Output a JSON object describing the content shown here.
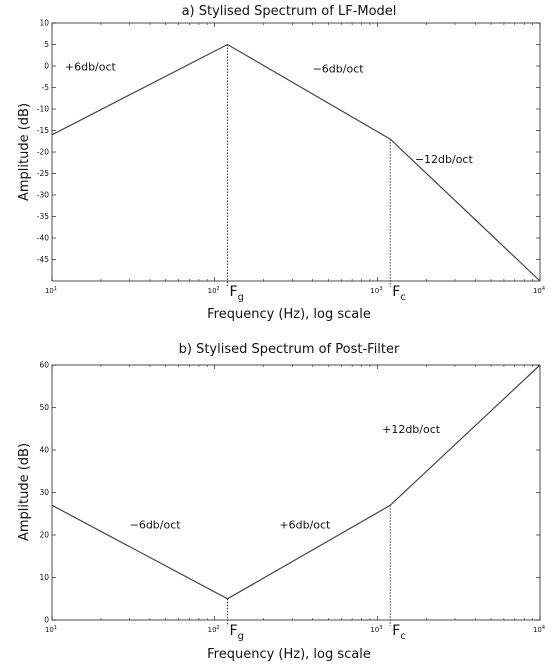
{
  "chart_data": [
    {
      "type": "line",
      "title": "a) Stylised Spectrum of LF-Model",
      "xlabel": "Frequency (Hz), log scale",
      "ylabel": "Amplitude (dB)",
      "xscale": "log",
      "xlim": [
        10,
        10000
      ],
      "ylim": [
        -50,
        10
      ],
      "yticks": [
        10,
        5,
        0,
        -5,
        -10,
        -15,
        -20,
        -25,
        -30,
        -35,
        -40,
        -45
      ],
      "xticks": [
        {
          "x": 10,
          "base": "10",
          "exp": "1"
        },
        {
          "x": 100,
          "base": "10",
          "exp": "2"
        },
        {
          "x": 1000,
          "base": "10",
          "exp": "3"
        },
        {
          "x": 10000,
          "base": "10",
          "exp": "4"
        }
      ],
      "series": [
        {
          "x": [
            10,
            120,
            1200,
            10000
          ],
          "y": [
            -16,
            5,
            -17,
            -50
          ]
        }
      ],
      "markers": [
        {
          "x": 120,
          "y": 5,
          "label": "F",
          "sub": "g"
        },
        {
          "x": 1200,
          "y": -17,
          "label": "F",
          "sub": "c"
        }
      ],
      "annotations": [
        {
          "x": 12,
          "y": -1,
          "text": "+6db/oct"
        },
        {
          "x": 400,
          "y": -1.5,
          "text": "−6db/oct"
        },
        {
          "x": 1700,
          "y": -22.5,
          "text": "−12db/oct"
        }
      ],
      "grid": false,
      "legend": "none"
    },
    {
      "type": "line",
      "title": "b) Stylised Spectrum of Post-Filter",
      "xlabel": "Frequency (Hz), log scale",
      "ylabel": "Amplitude (dB)",
      "xscale": "log",
      "xlim": [
        10,
        10000
      ],
      "ylim": [
        0,
        60
      ],
      "yticks": [
        0,
        10,
        20,
        30,
        40,
        50,
        60
      ],
      "xticks": [
        {
          "x": 10,
          "base": "10",
          "exp": "1"
        },
        {
          "x": 100,
          "base": "10",
          "exp": "2"
        },
        {
          "x": 1000,
          "base": "10",
          "exp": "3"
        },
        {
          "x": 10000,
          "base": "10",
          "exp": "4"
        }
      ],
      "series": [
        {
          "x": [
            10,
            120,
            1200,
            10000
          ],
          "y": [
            27,
            5,
            27,
            60
          ]
        }
      ],
      "markers": [
        {
          "x": 120,
          "y": 5,
          "label": "F",
          "sub": "g"
        },
        {
          "x": 1200,
          "y": 27,
          "label": "F",
          "sub": "c"
        }
      ],
      "annotations": [
        {
          "x": 30,
          "y": 21.5,
          "text": "−6db/oct"
        },
        {
          "x": 250,
          "y": 21.5,
          "text": "+6db/oct"
        },
        {
          "x": 1070,
          "y": 44,
          "text": "+12db/oct"
        }
      ],
      "grid": false,
      "legend": "none"
    }
  ]
}
